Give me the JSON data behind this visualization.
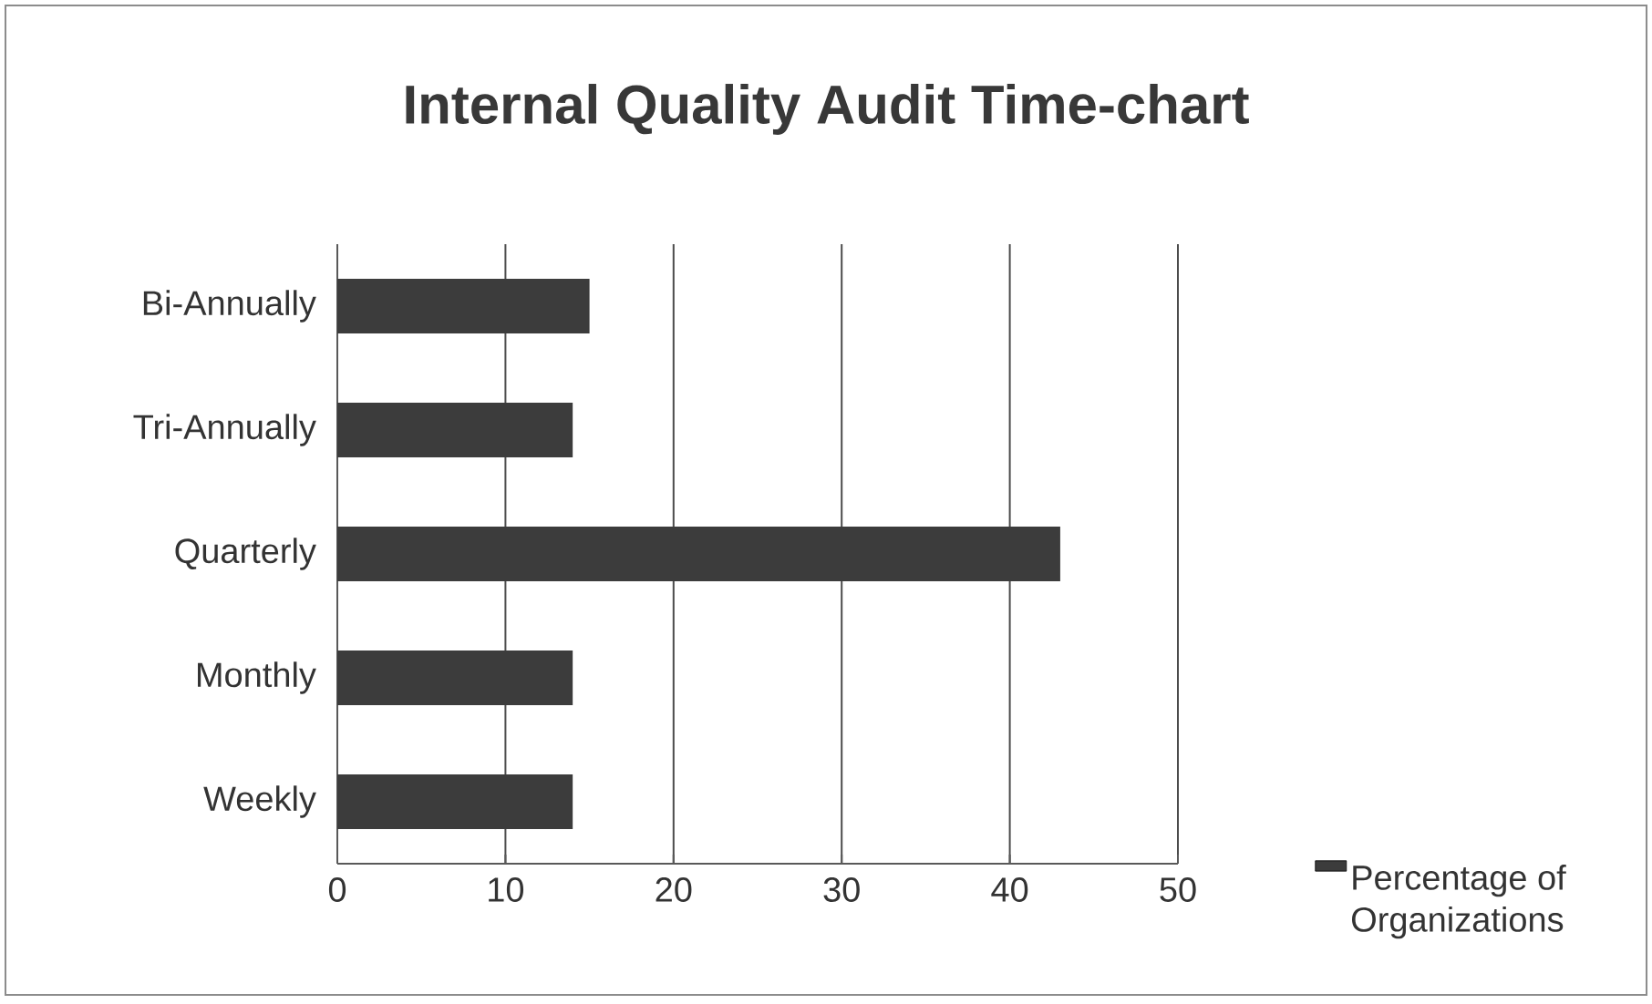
{
  "chart_data": {
    "type": "bar",
    "orientation": "horizontal",
    "title": "Internal Quality Audit Time-chart",
    "categories": [
      "Bi-Annually",
      "Tri-Annually",
      "Quarterly",
      "Monthly",
      "Weekly"
    ],
    "series": [
      {
        "name": "Percentage of Organizations",
        "color": "#3c3c3c",
        "values": [
          15,
          14,
          43,
          14,
          14
        ]
      }
    ],
    "xlim": [
      0,
      50
    ],
    "xticks": [
      0,
      10,
      20,
      30,
      40,
      50
    ],
    "grid": "x",
    "legend": "bottom right"
  }
}
